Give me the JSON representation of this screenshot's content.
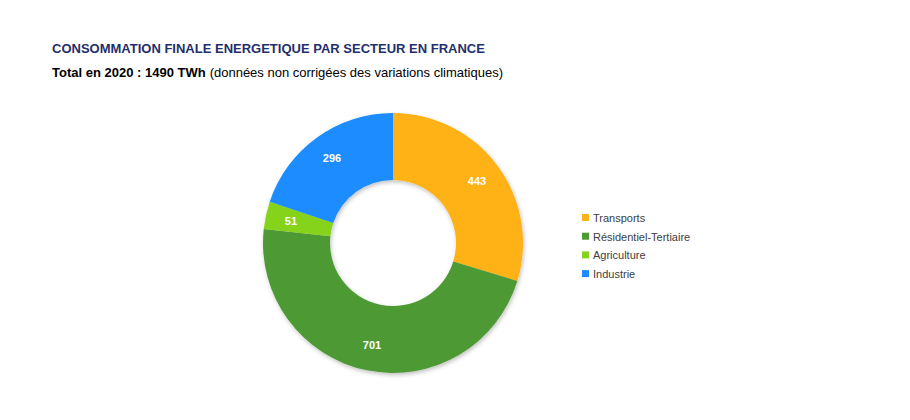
{
  "chart_data": {
    "type": "donut",
    "title": "CONSOMMATION FINALE ENERGETIQUE PAR SECTEUR EN FRANCE",
    "subtitle": "Total en 2020 : 1490 TWh",
    "subtitle_note": "(données non corrigées des variations climatiques)",
    "categories": [
      "Transports",
      "Résidentiel-Tertiaire",
      "Agriculture",
      "Industrie"
    ],
    "values": [
      443,
      701,
      51,
      296
    ],
    "colors": [
      "#FFB219",
      "#4E9A34",
      "#86D31C",
      "#1A8CFF"
    ],
    "data_labels": true,
    "legend": "right"
  }
}
